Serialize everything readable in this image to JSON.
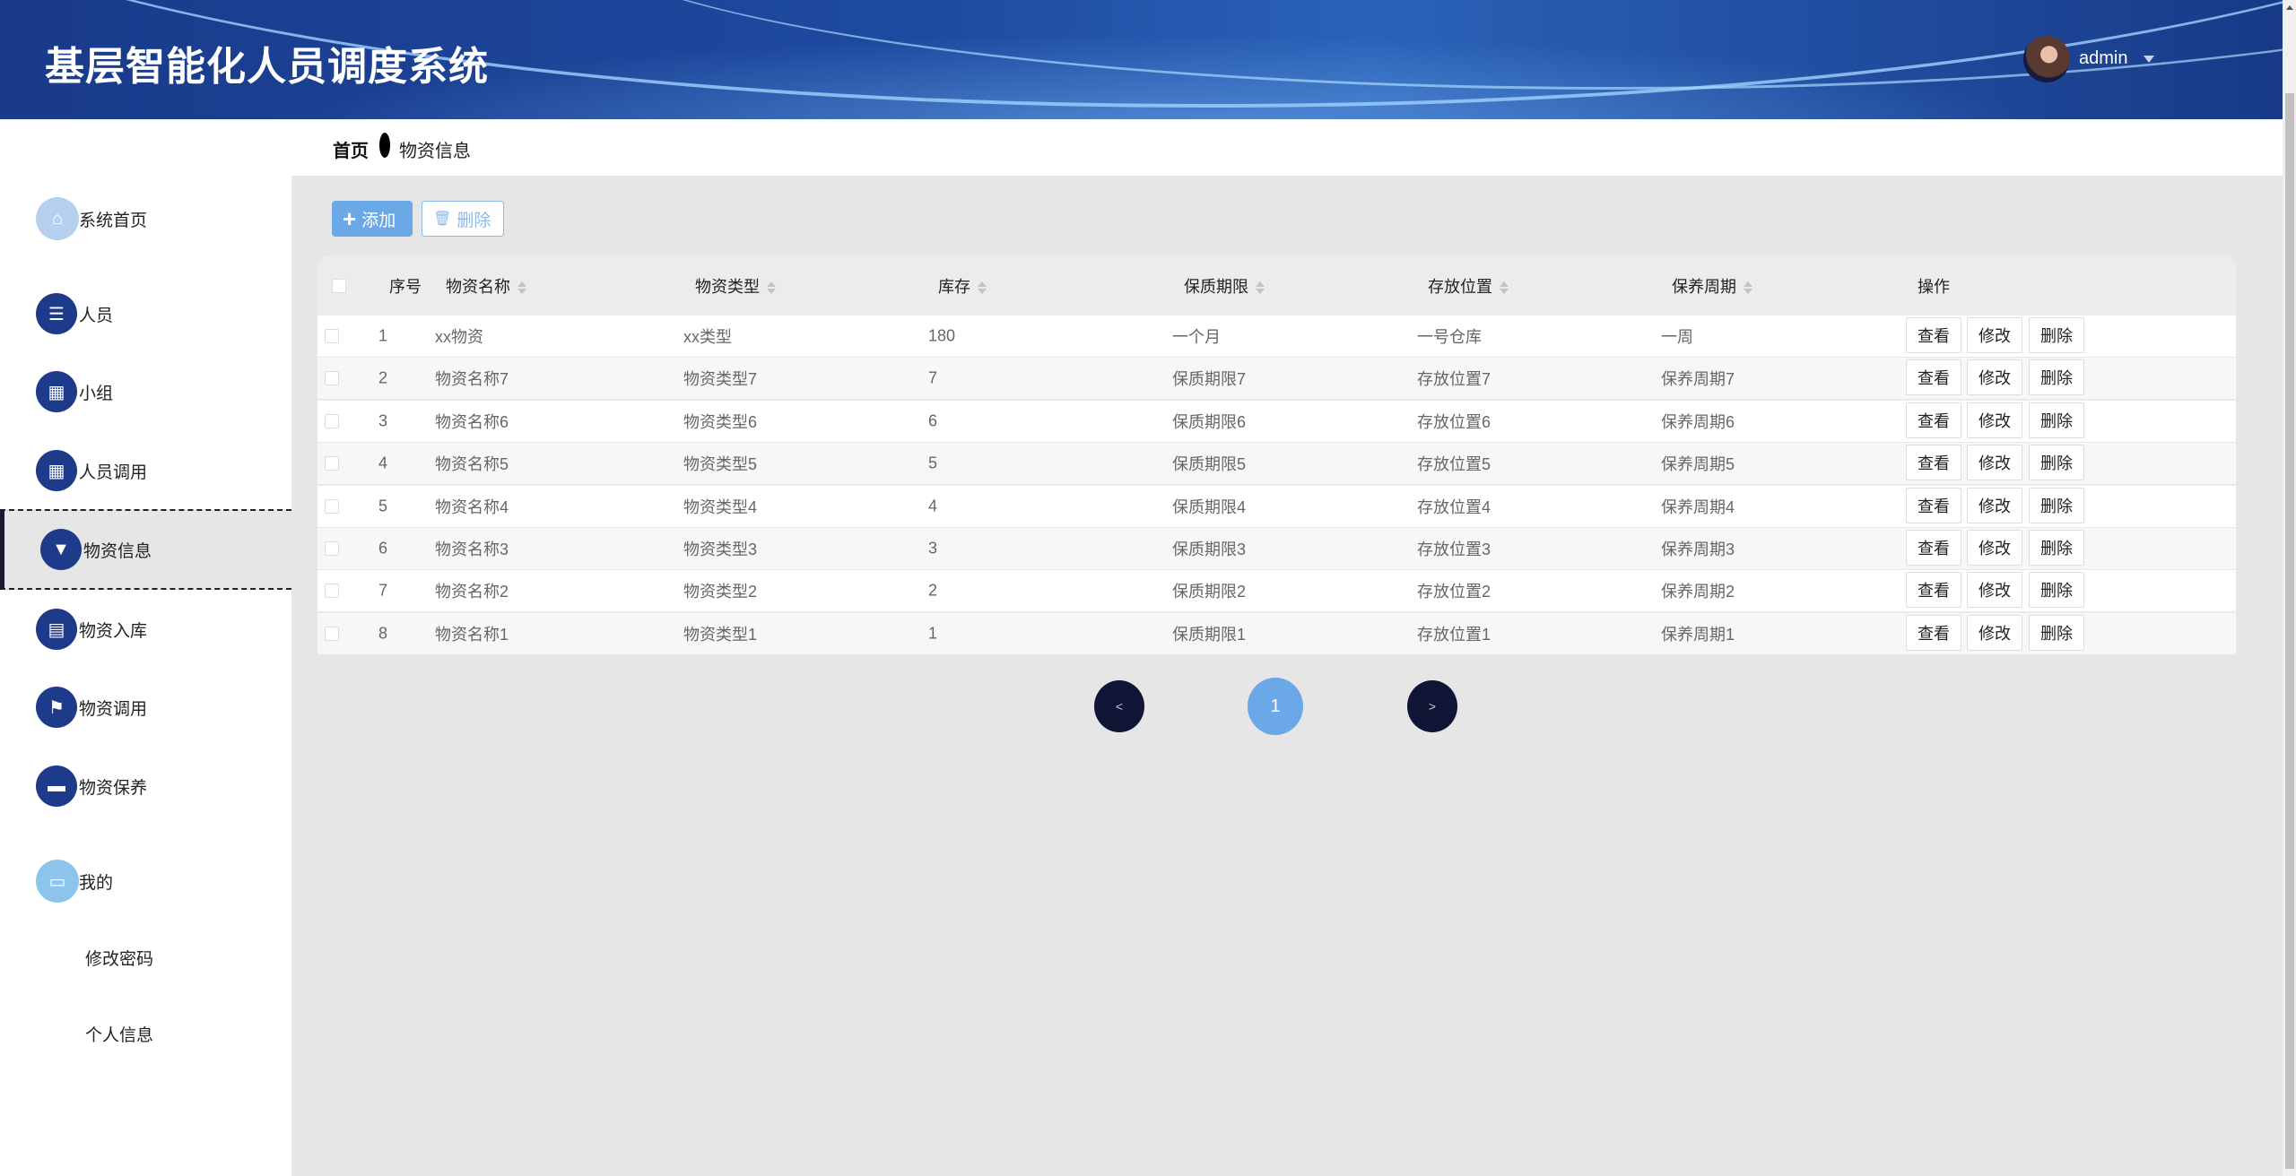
{
  "header": {
    "title": "基层智能化人员调度系统",
    "user": "admin"
  },
  "sidebar": {
    "items": [
      {
        "label": "系统首页",
        "icon": "home-icon"
      },
      {
        "label": "人员",
        "icon": "list-icon"
      },
      {
        "label": "小组",
        "icon": "grid-icon"
      },
      {
        "label": "人员调用",
        "icon": "grid-icon"
      },
      {
        "label": "物资信息",
        "icon": "brush-icon",
        "active": true
      },
      {
        "label": "物资入库",
        "icon": "clipboard-icon"
      },
      {
        "label": "物资调用",
        "icon": "flag-icon"
      },
      {
        "label": "物资保养",
        "icon": "briefcase-icon"
      },
      {
        "label": "我的",
        "icon": "wallet-icon"
      }
    ],
    "sub_items": [
      "修改密码",
      "个人信息"
    ]
  },
  "breadcrumb": {
    "home": "首页",
    "current": "物资信息"
  },
  "toolbar": {
    "add": "添加",
    "delete": "删除"
  },
  "table": {
    "columns": [
      "序号",
      "物资名称",
      "物资类型",
      "库存",
      "保质期限",
      "存放位置",
      "保养周期",
      "操作"
    ],
    "rows": [
      [
        "1",
        "xx物资",
        "xx类型",
        "180",
        "一个月",
        "一号仓库",
        "一周"
      ],
      [
        "2",
        "物资名称7",
        "物资类型7",
        "7",
        "保质期限7",
        "存放位置7",
        "保养周期7"
      ],
      [
        "3",
        "物资名称6",
        "物资类型6",
        "6",
        "保质期限6",
        "存放位置6",
        "保养周期6"
      ],
      [
        "4",
        "物资名称5",
        "物资类型5",
        "5",
        "保质期限5",
        "存放位置5",
        "保养周期5"
      ],
      [
        "5",
        "物资名称4",
        "物资类型4",
        "4",
        "保质期限4",
        "存放位置4",
        "保养周期4"
      ],
      [
        "6",
        "物资名称3",
        "物资类型3",
        "3",
        "保质期限3",
        "存放位置3",
        "保养周期3"
      ],
      [
        "7",
        "物资名称2",
        "物资类型2",
        "2",
        "保质期限2",
        "存放位置2",
        "保养周期2"
      ],
      [
        "8",
        "物资名称1",
        "物资类型1",
        "1",
        "保质期限1",
        "存放位置1",
        "保养周期1"
      ]
    ],
    "actions": [
      "查看",
      "修改",
      "删除"
    ]
  },
  "pagination": {
    "prev": "<",
    "current": "1",
    "next": ">"
  },
  "colors": {
    "header": "#1d4aa0",
    "nav_icon": "#1e3a8a",
    "accent": "#6aa8e8",
    "pager_dark": "#101535"
  }
}
